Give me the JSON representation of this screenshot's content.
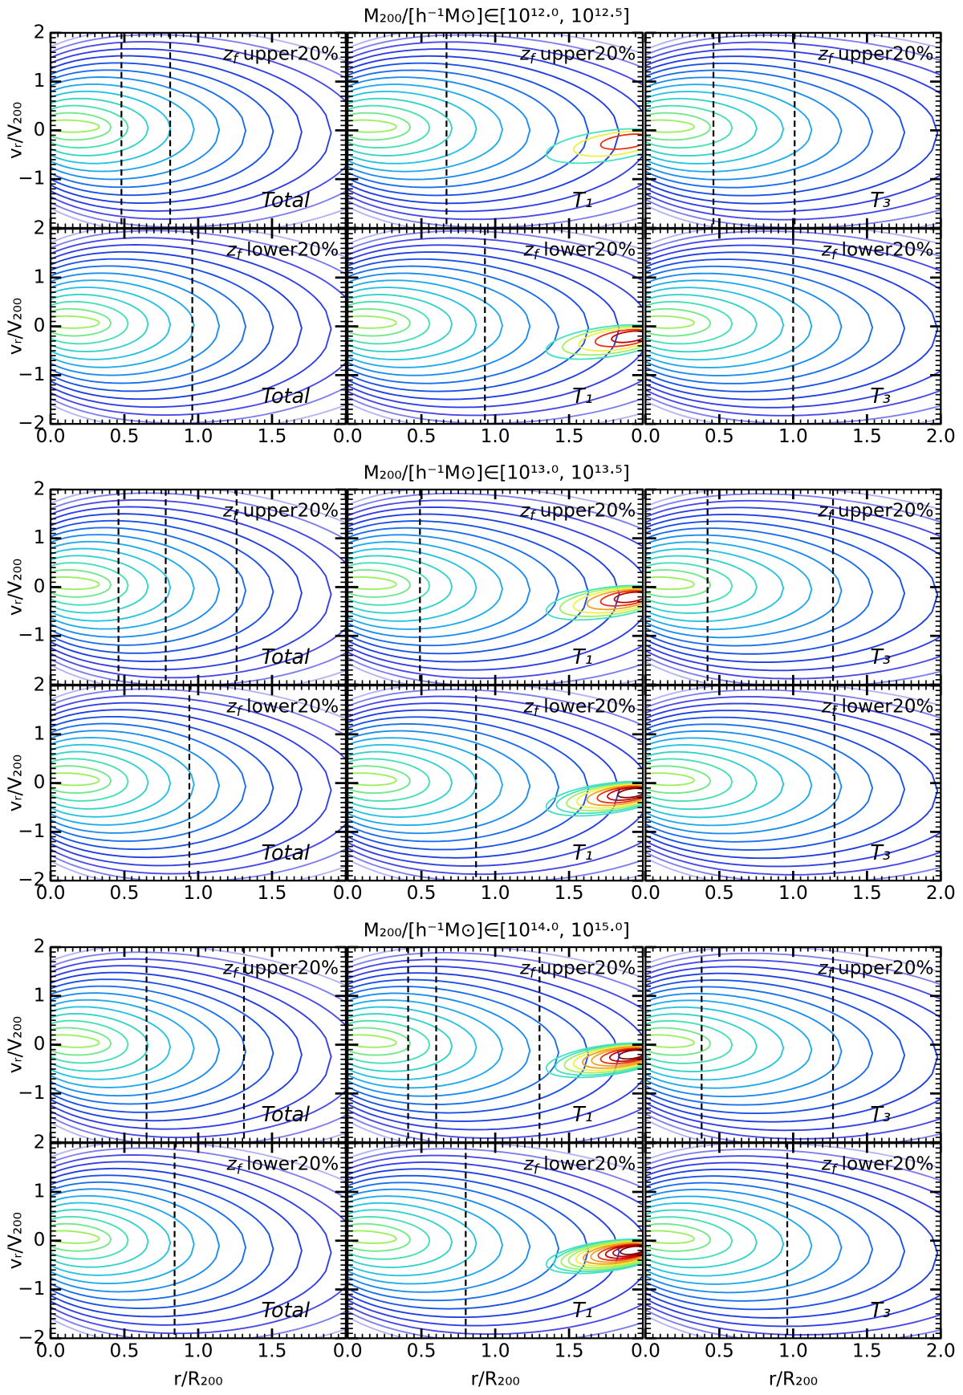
{
  "chart_data": [
    {
      "type": "contour",
      "title": "M₂₀₀/[h⁻¹M⊙]∈[10¹²·⁰, 10¹²·⁵]",
      "ylabel": "vᵣ/V₂₀₀",
      "xlim": [
        0,
        2
      ],
      "ylim": [
        -2,
        2
      ],
      "xticks": [
        {
          "value": 0,
          "label": "0.0"
        },
        {
          "value": 0.5,
          "label": "0.5"
        },
        {
          "value": 1,
          "label": "1.0"
        },
        {
          "value": 1.5,
          "label": "1.5"
        },
        {
          "value": 2,
          "label": "2.0"
        }
      ],
      "yticks": [
        {
          "value": -2,
          "label": "−2"
        },
        {
          "value": -1,
          "label": "−1"
        },
        0,
        1,
        2
      ],
      "tag_var": "z",
      "tag_sub": "f",
      "rows": [
        {
          "tag": "upper20%",
          "panels": [
            {
              "label": "Total",
              "vlines": [
                0.48,
                0.81
              ]
            },
            {
              "label": "T₁",
              "vlines": [
                0.67
              ]
            },
            {
              "label": "T₃",
              "vlines": [
                0.46,
                1.01
              ]
            }
          ]
        },
        {
          "tag": "lower20%",
          "panels": [
            {
              "label": "Total",
              "vlines": [
                0.96
              ]
            },
            {
              "label": "T₁",
              "vlines": [
                0.93
              ]
            },
            {
              "label": "T₃",
              "vlines": [
                1.0
              ]
            }
          ]
        }
      ]
    },
    {
      "type": "contour",
      "title": "M₂₀₀/[h⁻¹M⊙]∈[10¹³·⁰, 10¹³·⁵]",
      "ylabel": "vᵣ/V₂₀₀",
      "xlim": [
        0,
        2
      ],
      "ylim": [
        -2,
        2
      ],
      "xticks": [
        {
          "value": 0,
          "label": "0.0"
        },
        {
          "value": 0.5,
          "label": "0.5"
        },
        {
          "value": 1,
          "label": "1.0"
        },
        {
          "value": 1.5,
          "label": "1.5"
        },
        {
          "value": 2,
          "label": "2.0"
        }
      ],
      "yticks": [
        {
          "value": -2,
          "label": "−2"
        },
        {
          "value": -1,
          "label": "−1"
        },
        0,
        1,
        2
      ],
      "tag_var": "z",
      "tag_sub": "f",
      "rows": [
        {
          "tag": "upper20%",
          "panels": [
            {
              "label": "Total",
              "vlines": [
                0.46,
                0.78,
                1.26
              ]
            },
            {
              "label": "T₁",
              "vlines": [
                0.49
              ]
            },
            {
              "label": "T₃",
              "vlines": [
                0.42,
                1.27
              ]
            }
          ]
        },
        {
          "tag": "lower20%",
          "panels": [
            {
              "label": "Total",
              "vlines": [
                0.94
              ]
            },
            {
              "label": "T₁",
              "vlines": [
                0.87
              ]
            },
            {
              "label": "T₃",
              "vlines": [
                1.28
              ]
            }
          ]
        }
      ]
    },
    {
      "type": "contour",
      "title": "M₂₀₀/[h⁻¹M⊙]∈[10¹⁴·⁰, 10¹⁵·⁰]",
      "ylabel": "vᵣ/V₂₀₀",
      "xlabel": "r/R₂₀₀",
      "xlim": [
        0,
        2
      ],
      "ylim": [
        -2,
        2
      ],
      "xticks": [
        {
          "value": 0,
          "label": "0.0"
        },
        {
          "value": 0.5,
          "label": "0.5"
        },
        {
          "value": 1,
          "label": "1.0"
        },
        {
          "value": 1.5,
          "label": "1.5"
        },
        {
          "value": 2,
          "label": "2.0"
        }
      ],
      "yticks": [
        {
          "value": -2,
          "label": "−2"
        },
        {
          "value": -1,
          "label": "−1"
        },
        0,
        1,
        2
      ],
      "tag_var": "z",
      "tag_sub": "f",
      "rows": [
        {
          "tag": "upper20%",
          "panels": [
            {
              "label": "Total",
              "vlines": [
                0.65,
                1.31
              ]
            },
            {
              "label": "T₁",
              "vlines": [
                0.41,
                0.6,
                1.3
              ]
            },
            {
              "label": "T₃",
              "vlines": [
                0.38,
                1.27
              ]
            }
          ]
        },
        {
          "tag": "lower20%",
          "panels": [
            {
              "label": "Total",
              "vlines": [
                0.84
              ]
            },
            {
              "label": "T₁",
              "vlines": [
                0.8
              ]
            },
            {
              "label": "T₃",
              "vlines": [
                0.96
              ]
            }
          ]
        }
      ]
    }
  ]
}
